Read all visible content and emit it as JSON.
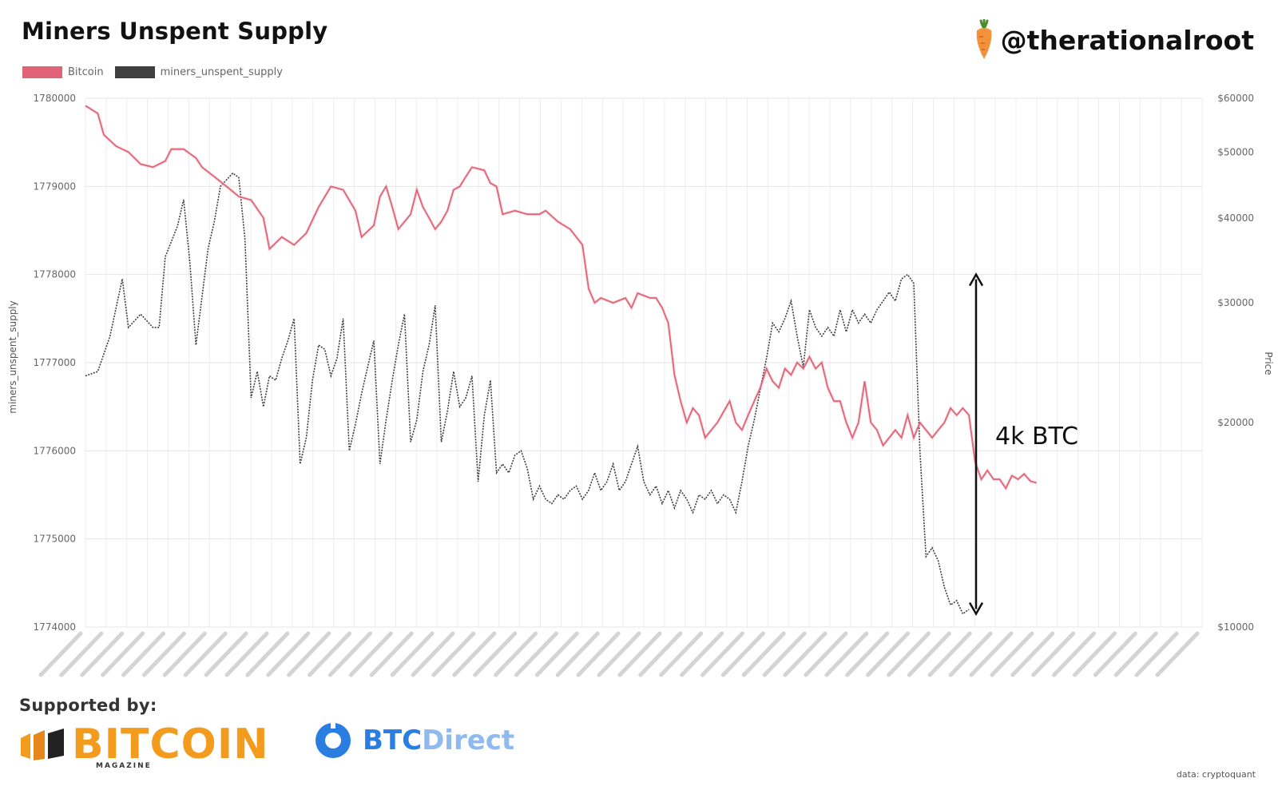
{
  "title": "Miners Unspent Supply",
  "handle": "@therationalroot",
  "annotation": "4k BTC",
  "sponsors": {
    "label": "Supported by:",
    "bitcoin_name": "BITCOIN",
    "bitcoin_sub": "MAGAZINE",
    "btcdirect_name_a": "BTC",
    "btcdirect_name_b": "Direct"
  },
  "credit": "data: cryptoquant",
  "colors": {
    "bitcoin": "#e06377",
    "supply": "#3f3f3f"
  },
  "chart_data": {
    "type": "line",
    "legend": [
      "Bitcoin",
      "miners_unspent_supply"
    ],
    "ylabel_left": "miners_unspent_supply",
    "ylabel_right": "Price",
    "yleft_range": [
      1774000,
      1780000
    ],
    "yleft_ticks": [
      "1780000",
      "1779000",
      "1778000",
      "1777000",
      "1776000",
      "1775000",
      "1774000"
    ],
    "yright_ticks": [
      "$60000",
      "$50000",
      "$40000",
      "$30000",
      "$20000",
      "$10000"
    ],
    "yright_tick_values": [
      60000,
      50000,
      40000,
      30000,
      20000,
      10000
    ],
    "grid": true,
    "series": [
      {
        "name": "miners_unspent_supply",
        "points": [
          [
            0,
            1776850
          ],
          [
            2,
            1776900
          ],
          [
            4,
            1777300
          ],
          [
            6,
            1777950
          ],
          [
            7,
            1777400
          ],
          [
            9,
            1777550
          ],
          [
            11,
            1777400
          ],
          [
            12,
            1777400
          ],
          [
            13,
            1778200
          ],
          [
            15,
            1778550
          ],
          [
            16,
            1778850
          ],
          [
            17,
            1778150
          ],
          [
            18,
            1777200
          ],
          [
            20,
            1778300
          ],
          [
            21,
            1778600
          ],
          [
            22,
            1779000
          ],
          [
            24,
            1779150
          ],
          [
            25,
            1779100
          ],
          [
            26,
            1778400
          ],
          [
            27,
            1776600
          ],
          [
            28,
            1776900
          ],
          [
            29,
            1776500
          ],
          [
            30,
            1776850
          ],
          [
            31,
            1776800
          ],
          [
            32,
            1777050
          ],
          [
            33,
            1777250
          ],
          [
            34,
            1777500
          ],
          [
            35,
            1775850
          ],
          [
            36,
            1776150
          ],
          [
            37,
            1776800
          ],
          [
            38,
            1777200
          ],
          [
            39,
            1777150
          ],
          [
            40,
            1776850
          ],
          [
            41,
            1777050
          ],
          [
            42,
            1777500
          ],
          [
            43,
            1776000
          ],
          [
            44,
            1776300
          ],
          [
            45,
            1776650
          ],
          [
            46,
            1776950
          ],
          [
            47,
            1777250
          ],
          [
            48,
            1775850
          ],
          [
            49,
            1776350
          ],
          [
            50,
            1776800
          ],
          [
            51,
            1777200
          ],
          [
            52,
            1777550
          ],
          [
            53,
            1776100
          ],
          [
            54,
            1776350
          ],
          [
            55,
            1776900
          ],
          [
            56,
            1777200
          ],
          [
            57,
            1777650
          ],
          [
            58,
            1776100
          ],
          [
            59,
            1776450
          ],
          [
            60,
            1776900
          ],
          [
            61,
            1776500
          ],
          [
            62,
            1776600
          ],
          [
            63,
            1776850
          ],
          [
            64,
            1775650
          ],
          [
            65,
            1776400
          ],
          [
            66,
            1776800
          ],
          [
            67,
            1775750
          ],
          [
            68,
            1775850
          ],
          [
            69,
            1775750
          ],
          [
            70,
            1775950
          ],
          [
            71,
            1776000
          ],
          [
            72,
            1775800
          ],
          [
            73,
            1775450
          ],
          [
            74,
            1775600
          ],
          [
            75,
            1775450
          ],
          [
            76,
            1775400
          ],
          [
            77,
            1775500
          ],
          [
            78,
            1775450
          ],
          [
            79,
            1775550
          ],
          [
            80,
            1775600
          ],
          [
            81,
            1775450
          ],
          [
            82,
            1775550
          ],
          [
            83,
            1775750
          ],
          [
            84,
            1775550
          ],
          [
            85,
            1775650
          ],
          [
            86,
            1775850
          ],
          [
            87,
            1775550
          ],
          [
            88,
            1775650
          ],
          [
            89,
            1775850
          ],
          [
            90,
            1776050
          ],
          [
            91,
            1775650
          ],
          [
            92,
            1775500
          ],
          [
            93,
            1775600
          ],
          [
            94,
            1775400
          ],
          [
            95,
            1775550
          ],
          [
            96,
            1775350
          ],
          [
            97,
            1775550
          ],
          [
            98,
            1775450
          ],
          [
            99,
            1775300
          ],
          [
            100,
            1775500
          ],
          [
            101,
            1775450
          ],
          [
            102,
            1775550
          ],
          [
            103,
            1775400
          ],
          [
            104,
            1775500
          ],
          [
            105,
            1775450
          ],
          [
            106,
            1775300
          ],
          [
            107,
            1775650
          ],
          [
            108,
            1776050
          ],
          [
            109,
            1776350
          ],
          [
            110,
            1776700
          ],
          [
            111,
            1777050
          ],
          [
            112,
            1777450
          ],
          [
            113,
            1777350
          ],
          [
            114,
            1777500
          ],
          [
            115,
            1777700
          ],
          [
            116,
            1777300
          ],
          [
            117,
            1776950
          ],
          [
            118,
            1777600
          ],
          [
            119,
            1777400
          ],
          [
            120,
            1777300
          ],
          [
            121,
            1777400
          ],
          [
            122,
            1777300
          ],
          [
            123,
            1777600
          ],
          [
            124,
            1777350
          ],
          [
            125,
            1777600
          ],
          [
            126,
            1777450
          ],
          [
            127,
            1777550
          ],
          [
            128,
            1777450
          ],
          [
            129,
            1777600
          ],
          [
            130,
            1777700
          ],
          [
            131,
            1777800
          ],
          [
            132,
            1777700
          ],
          [
            133,
            1777950
          ],
          [
            134,
            1778000
          ],
          [
            135,
            1777900
          ],
          [
            136,
            1776000
          ],
          [
            137,
            1774800
          ],
          [
            138,
            1774900
          ],
          [
            139,
            1774750
          ],
          [
            140,
            1774450
          ],
          [
            141,
            1774250
          ],
          [
            142,
            1774300
          ],
          [
            143,
            1774150
          ],
          [
            144,
            1774200
          ]
        ]
      },
      {
        "name": "Bitcoin",
        "points": [
          [
            0,
            58500
          ],
          [
            2,
            57000
          ],
          [
            3,
            53000
          ],
          [
            5,
            51000
          ],
          [
            7,
            50000
          ],
          [
            9,
            48000
          ],
          [
            11,
            47500
          ],
          [
            13,
            48500
          ],
          [
            14,
            50500
          ],
          [
            16,
            50500
          ],
          [
            18,
            49000
          ],
          [
            19,
            47500
          ],
          [
            21,
            46000
          ],
          [
            23,
            44500
          ],
          [
            25,
            43000
          ],
          [
            27,
            42500
          ],
          [
            29,
            40000
          ],
          [
            30,
            36000
          ],
          [
            32,
            37500
          ],
          [
            34,
            36500
          ],
          [
            36,
            38000
          ],
          [
            38,
            41500
          ],
          [
            40,
            44500
          ],
          [
            42,
            44000
          ],
          [
            44,
            41000
          ],
          [
            45,
            37500
          ],
          [
            47,
            39000
          ],
          [
            48,
            43000
          ],
          [
            49,
            44500
          ],
          [
            50,
            41500
          ],
          [
            51,
            38500
          ],
          [
            53,
            40500
          ],
          [
            54,
            44000
          ],
          [
            55,
            41500
          ],
          [
            56,
            40000
          ],
          [
            57,
            38500
          ],
          [
            58,
            39500
          ],
          [
            59,
            41000
          ],
          [
            60,
            44000
          ],
          [
            61,
            44500
          ],
          [
            62,
            46000
          ],
          [
            63,
            47500
          ],
          [
            65,
            47000
          ],
          [
            66,
            45000
          ],
          [
            67,
            44500
          ],
          [
            68,
            40500
          ],
          [
            70,
            41000
          ],
          [
            72,
            40500
          ],
          [
            74,
            40500
          ],
          [
            75,
            41000
          ],
          [
            77,
            39500
          ],
          [
            79,
            38500
          ],
          [
            80,
            37500
          ],
          [
            81,
            36500
          ],
          [
            82,
            31500
          ],
          [
            83,
            30000
          ],
          [
            84,
            30500
          ],
          [
            86,
            30000
          ],
          [
            88,
            30500
          ],
          [
            89,
            29500
          ],
          [
            90,
            31000
          ],
          [
            92,
            30500
          ],
          [
            93,
            30500
          ],
          [
            94,
            29500
          ],
          [
            95,
            28000
          ],
          [
            96,
            23500
          ],
          [
            97,
            21500
          ],
          [
            98,
            20000
          ],
          [
            99,
            21000
          ],
          [
            100,
            20500
          ],
          [
            101,
            19000
          ],
          [
            103,
            20000
          ],
          [
            105,
            21500
          ],
          [
            106,
            20000
          ],
          [
            107,
            19500
          ],
          [
            108,
            20500
          ],
          [
            109,
            21500
          ],
          [
            110,
            22500
          ],
          [
            111,
            24000
          ],
          [
            112,
            23000
          ],
          [
            113,
            22500
          ],
          [
            114,
            24000
          ],
          [
            115,
            23500
          ],
          [
            116,
            24500
          ],
          [
            117,
            24000
          ],
          [
            118,
            25000
          ],
          [
            119,
            24000
          ],
          [
            120,
            24500
          ],
          [
            121,
            22500
          ],
          [
            122,
            21500
          ],
          [
            123,
            21500
          ],
          [
            124,
            20000
          ],
          [
            125,
            19000
          ],
          [
            126,
            20000
          ],
          [
            127,
            23000
          ],
          [
            128,
            20000
          ],
          [
            129,
            19500
          ],
          [
            130,
            18500
          ],
          [
            131,
            19000
          ],
          [
            132,
            19500
          ],
          [
            133,
            19000
          ],
          [
            134,
            20500
          ],
          [
            135,
            19000
          ],
          [
            136,
            20000
          ],
          [
            137,
            19500
          ],
          [
            138,
            19000
          ],
          [
            139,
            19500
          ],
          [
            140,
            20000
          ],
          [
            141,
            21000
          ],
          [
            142,
            20500
          ],
          [
            143,
            21000
          ],
          [
            144,
            20500
          ],
          [
            145,
            17500
          ],
          [
            146,
            16500
          ],
          [
            147,
            17000
          ],
          [
            148,
            16500
          ],
          [
            149,
            16500
          ],
          [
            150,
            16000
          ],
          [
            151,
            16700
          ],
          [
            152,
            16500
          ],
          [
            153,
            16800
          ],
          [
            154,
            16400
          ],
          [
            155,
            16300
          ]
        ]
      }
    ],
    "annotation_arrow": {
      "from": 1774150,
      "to": 1778000
    }
  }
}
